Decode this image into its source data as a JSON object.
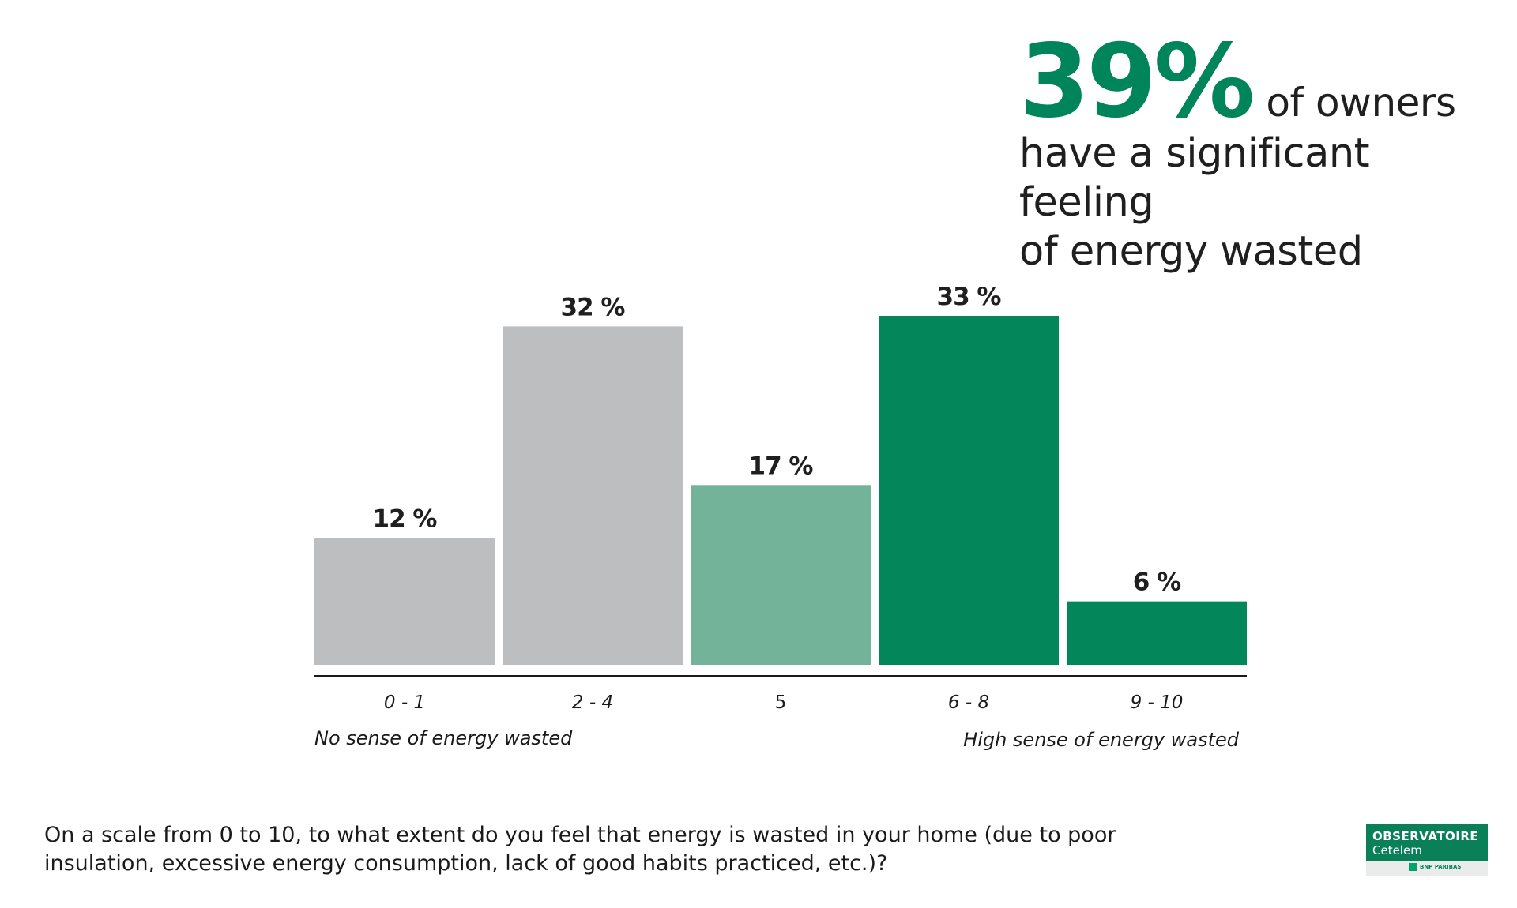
{
  "headline": {
    "big_value": "39%",
    "after_big": "of owners",
    "line2": "have a significant feeling",
    "line3": "of energy wasted"
  },
  "chart_data": {
    "type": "bar",
    "categories": [
      "0 - 1",
      "2 - 4",
      "5",
      "6 - 8",
      "9 - 10"
    ],
    "values": [
      12,
      32,
      17,
      33,
      6
    ],
    "value_labels": [
      "12 %",
      "32 %",
      "17 %",
      "33 %",
      "6 %"
    ],
    "colors": [
      "#bcbec0",
      "#bcbec0",
      "#72b39a",
      "#02865a",
      "#02865a"
    ],
    "ylim": [
      0,
      33
    ],
    "annotations": {
      "left": "No sense of energy wasted",
      "right": "High sense of energy wasted"
    },
    "axis_color": "#1a1a1a",
    "grid": false
  },
  "question": "On a scale from 0 to 10, to what extent do you feel that energy is wasted in your home (due to poor insulation, excessive energy consumption,  lack of good habits practiced, etc.)?",
  "logo": {
    "line1": "OBSERVATOIRE",
    "line2": "Cetelem",
    "partner": "BNP PARIBAS",
    "brand_color": "#0a8058"
  }
}
